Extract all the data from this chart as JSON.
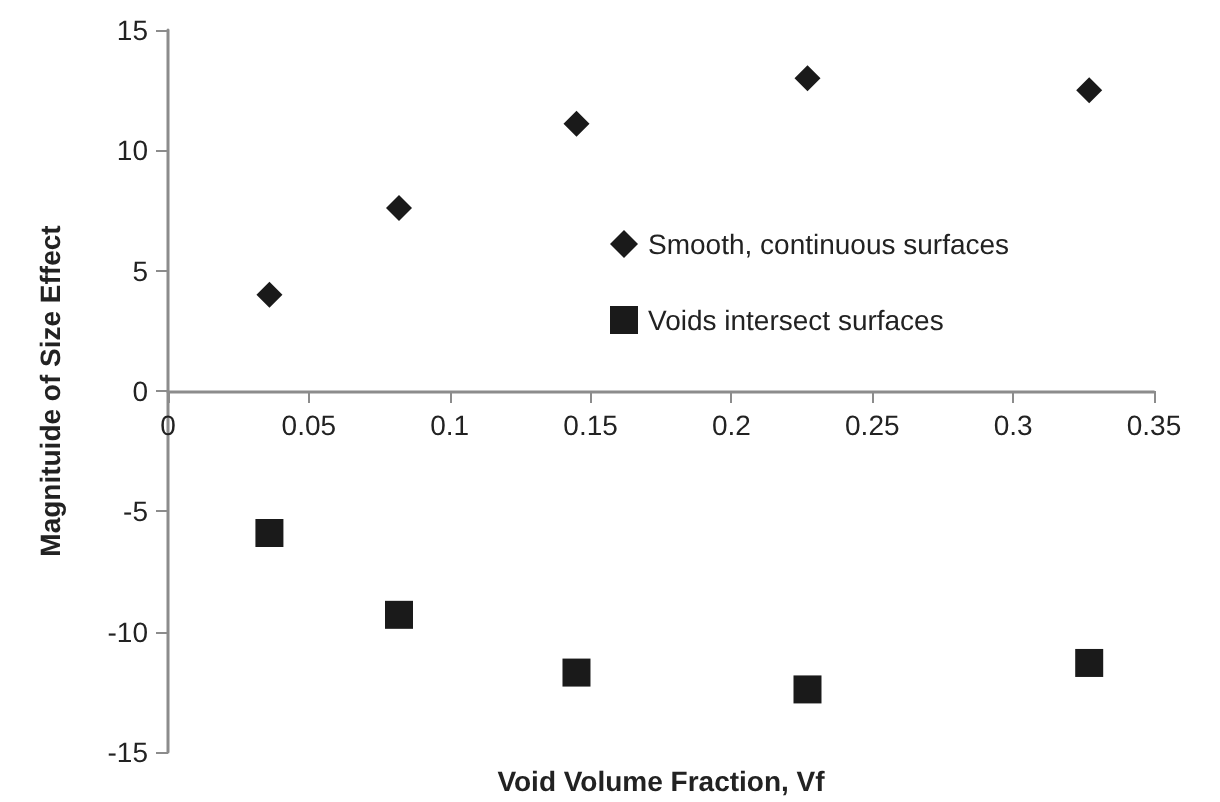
{
  "chart_data": {
    "type": "scatter",
    "xlabel": "Void Volume Fraction, Vf",
    "ylabel": "Magnituide of Size Effect",
    "x": [
      0.036,
      0.082,
      0.145,
      0.227,
      0.327
    ],
    "series": [
      {
        "name": "Smooth, continuous surfaces",
        "color": "#1a1a1a",
        "marker": "diamond",
        "values": [
          4.0,
          7.6,
          11.1,
          13.0,
          12.5
        ]
      },
      {
        "name": "Voids intersect surfaces",
        "color": "#1a1a1a",
        "marker": "square",
        "values": [
          -5.9,
          -9.3,
          -11.7,
          -12.4,
          -11.3
        ]
      }
    ],
    "xlim": [
      0,
      0.35
    ],
    "xticks": [
      0,
      0.05,
      0.1,
      0.15,
      0.2,
      0.25,
      0.3,
      0.35
    ],
    "ylim": [
      -15,
      15
    ],
    "yticks": [
      -15,
      -10,
      -5,
      0,
      5,
      10,
      15
    ],
    "grid": false,
    "legend": "right"
  }
}
